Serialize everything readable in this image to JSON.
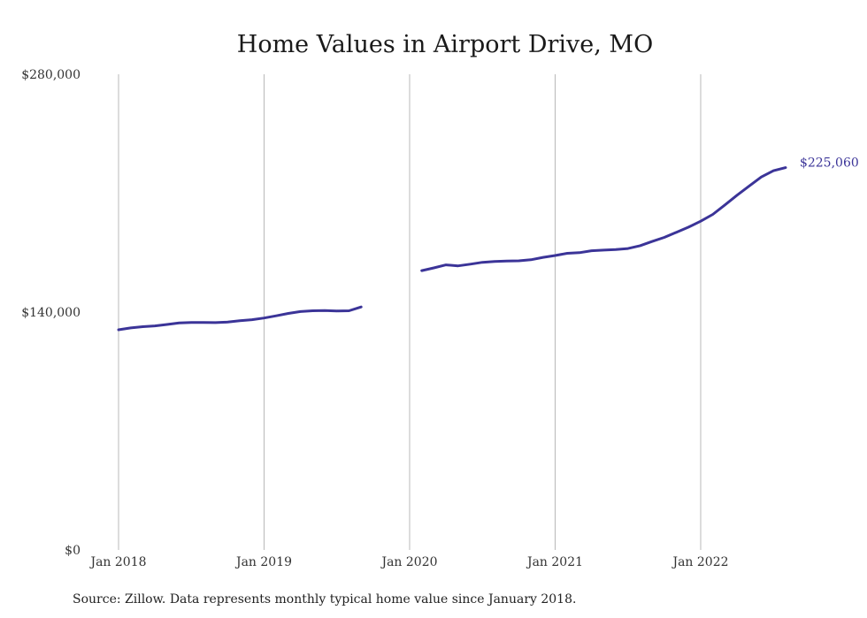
{
  "chart_data": {
    "type": "line",
    "title": "Home Values in Airport Drive, MO",
    "xlabel": "",
    "ylabel": "",
    "ylim": [
      0,
      280000
    ],
    "yticks": [
      {
        "value": 0,
        "label": "$0"
      },
      {
        "value": 140000,
        "label": "$140,000"
      },
      {
        "value": 280000,
        "label": "$280,000"
      }
    ],
    "xticks": [
      {
        "value": "2018-01",
        "label": "Jan 2018"
      },
      {
        "value": "2019-01",
        "label": "Jan 2019"
      },
      {
        "value": "2020-01",
        "label": "Jan 2020"
      },
      {
        "value": "2021-01",
        "label": "Jan 2021"
      },
      {
        "value": "2022-01",
        "label": "Jan 2022"
      }
    ],
    "grid": "vertical",
    "line_color": "#3b3498",
    "end_label": "$225,060",
    "series": [
      {
        "segments": [
          [
            {
              "x": "2018-01",
              "y": 129600
            },
            {
              "x": "2018-02",
              "y": 130700
            },
            {
              "x": "2018-03",
              "y": 131400
            },
            {
              "x": "2018-04",
              "y": 131900
            },
            {
              "x": "2018-05",
              "y": 132700
            },
            {
              "x": "2018-06",
              "y": 133600
            },
            {
              "x": "2018-07",
              "y": 133900
            },
            {
              "x": "2018-08",
              "y": 133900
            },
            {
              "x": "2018-09",
              "y": 133800
            },
            {
              "x": "2018-10",
              "y": 134100
            },
            {
              "x": "2018-11",
              "y": 134900
            },
            {
              "x": "2018-12",
              "y": 135500
            },
            {
              "x": "2019-01",
              "y": 136500
            },
            {
              "x": "2019-02",
              "y": 137800
            },
            {
              "x": "2019-03",
              "y": 139200
            },
            {
              "x": "2019-04",
              "y": 140300
            },
            {
              "x": "2019-05",
              "y": 140800
            },
            {
              "x": "2019-06",
              "y": 140900
            },
            {
              "x": "2019-07",
              "y": 140700
            },
            {
              "x": "2019-08",
              "y": 140800
            },
            {
              "x": "2019-09",
              "y": 143000
            }
          ],
          [
            {
              "x": "2020-02",
              "y": 164400
            },
            {
              "x": "2020-03",
              "y": 166000
            },
            {
              "x": "2020-04",
              "y": 167800
            },
            {
              "x": "2020-05",
              "y": 167200
            },
            {
              "x": "2020-06",
              "y": 168200
            },
            {
              "x": "2020-07",
              "y": 169300
            },
            {
              "x": "2020-08",
              "y": 169800
            },
            {
              "x": "2020-09",
              "y": 170100
            },
            {
              "x": "2020-10",
              "y": 170200
            },
            {
              "x": "2020-11",
              "y": 170800
            },
            {
              "x": "2020-12",
              "y": 172200
            },
            {
              "x": "2021-01",
              "y": 173300
            },
            {
              "x": "2021-02",
              "y": 174600
            },
            {
              "x": "2021-03",
              "y": 175000
            },
            {
              "x": "2021-04",
              "y": 176100
            },
            {
              "x": "2021-05",
              "y": 176500
            },
            {
              "x": "2021-06",
              "y": 176800
            },
            {
              "x": "2021-07",
              "y": 177400
            },
            {
              "x": "2021-08",
              "y": 179100
            },
            {
              "x": "2021-09",
              "y": 181600
            },
            {
              "x": "2021-10",
              "y": 184000
            },
            {
              "x": "2021-11",
              "y": 187000
            },
            {
              "x": "2021-12",
              "y": 190000
            },
            {
              "x": "2022-01",
              "y": 193500
            },
            {
              "x": "2022-02",
              "y": 197500
            },
            {
              "x": "2022-03",
              "y": 203100
            },
            {
              "x": "2022-04",
              "y": 208800
            },
            {
              "x": "2022-05",
              "y": 214200
            },
            {
              "x": "2022-06",
              "y": 219500
            },
            {
              "x": "2022-07",
              "y": 223200
            },
            {
              "x": "2022-08",
              "y": 225060
            }
          ]
        ]
      }
    ]
  },
  "footer": {
    "source": "Source: Zillow. Data represents monthly typical home value since January 2018."
  }
}
